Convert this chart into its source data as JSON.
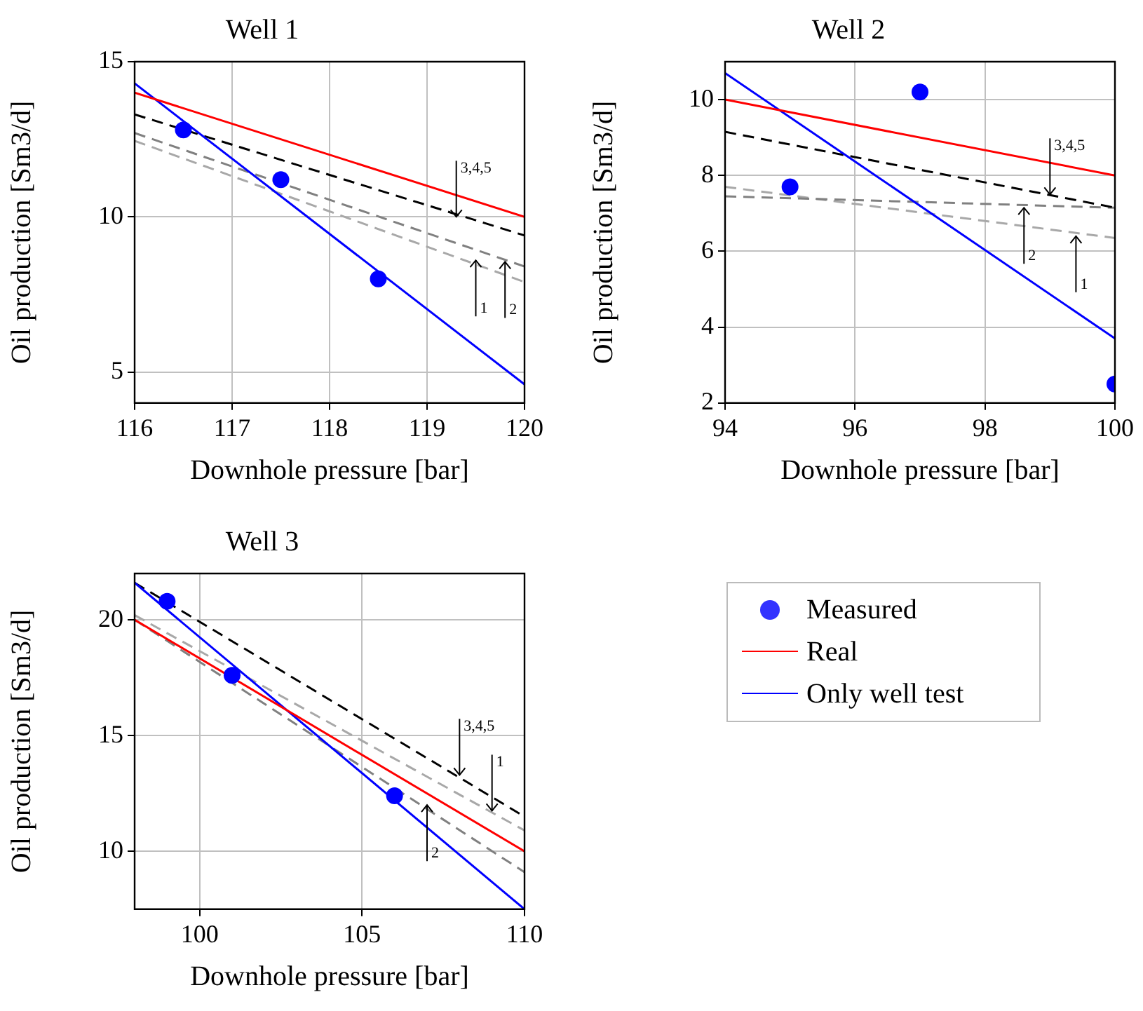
{
  "chart_data": [
    {
      "type": "line",
      "title": "Well 1",
      "xlabel": "Downhole pressure [bar]",
      "ylabel": "Oil production [Sm3/d]",
      "xlim": [
        116,
        120
      ],
      "xticks": [
        116,
        117,
        118,
        119,
        120
      ],
      "ylim": [
        4,
        15
      ],
      "yticks": [
        5,
        10,
        15
      ],
      "grid": true,
      "series": [
        {
          "type": "scatter",
          "marker": "circle",
          "color": "#0000ff",
          "x": [
            116.5,
            117.5,
            118.5
          ],
          "values": [
            12.8,
            11.2,
            8.0
          ]
        },
        {
          "color": "#ff0000",
          "x": [
            116,
            120
          ],
          "values": [
            14,
            10
          ]
        },
        {
          "color": "#0000ff",
          "x": [
            116,
            120
          ],
          "values": [
            14.3,
            4.6
          ]
        },
        {
          "color": "#000000",
          "line_style": "dashed",
          "x": [
            116,
            120
          ],
          "values": [
            13.3,
            9.4
          ]
        },
        {
          "color": "#808080",
          "line_style": "dashed",
          "x": [
            116,
            120
          ],
          "values": [
            12.7,
            8.4
          ]
        },
        {
          "color": "#a8a8a8",
          "line_style": "dashed",
          "x": [
            116,
            120
          ],
          "values": [
            12.45,
            7.9
          ]
        }
      ],
      "annotations": [
        {
          "text": "3,4,5",
          "x": 119.3,
          "y": 10.0
        },
        {
          "text": "1",
          "x": 119.5,
          "y": 8.6
        },
        {
          "text": "2",
          "x": 119.8,
          "y": 8.55
        }
      ]
    },
    {
      "type": "line",
      "title": "Well 2",
      "xlabel": "Downhole pressure [bar]",
      "ylabel": "Oil production [Sm3/d]",
      "xlim": [
        94,
        100
      ],
      "xticks": [
        94,
        96,
        98,
        100
      ],
      "ylim": [
        2,
        11
      ],
      "yticks": [
        2,
        4,
        6,
        8,
        10
      ],
      "grid": true,
      "series": [
        {
          "type": "scatter",
          "marker": "circle",
          "color": "#0000ff",
          "x": [
            95,
            97,
            100
          ],
          "values": [
            7.7,
            10.2,
            2.5
          ]
        },
        {
          "color": "#ff0000",
          "x": [
            94,
            100
          ],
          "values": [
            10,
            8
          ]
        },
        {
          "color": "#0000ff",
          "x": [
            94,
            100
          ],
          "values": [
            10.7,
            3.7
          ]
        },
        {
          "color": "#000000",
          "line_style": "dashed",
          "x": [
            94,
            100
          ],
          "values": [
            9.15,
            7.15
          ]
        },
        {
          "color": "#808080",
          "line_style": "dashed",
          "x": [
            94,
            100
          ],
          "values": [
            7.45,
            7.15
          ]
        },
        {
          "color": "#a8a8a8",
          "line_style": "dashed",
          "x": [
            94,
            100
          ],
          "values": [
            7.7,
            6.35
          ]
        }
      ],
      "annotations": [
        {
          "text": "3,4,5",
          "x": 99.0,
          "y": 7.5
        },
        {
          "text": "2",
          "x": 98.6,
          "y": 7.15
        },
        {
          "text": "1",
          "x": 99.4,
          "y": 6.4
        }
      ]
    },
    {
      "type": "line",
      "title": "Well 3",
      "xlabel": "Downhole pressure [bar]",
      "ylabel": "Oil production [Sm3/d]",
      "xlim": [
        98,
        110
      ],
      "xticks": [
        100,
        105,
        110
      ],
      "ylim": [
        7.5,
        22
      ],
      "yticks": [
        10,
        15,
        20
      ],
      "grid": true,
      "legend": "right",
      "series": [
        {
          "name": "Measured",
          "type": "scatter",
          "marker": "circle",
          "color": "#0000ff",
          "x": [
            99,
            101,
            106
          ],
          "values": [
            20.8,
            17.6,
            12.4
          ]
        },
        {
          "name": "Real",
          "color": "#ff0000",
          "x": [
            98,
            110
          ],
          "values": [
            20,
            10
          ]
        },
        {
          "name": "Only well test",
          "color": "#0000ff",
          "x": [
            98,
            110
          ],
          "values": [
            21.6,
            7.5
          ]
        },
        {
          "color": "#000000",
          "line_style": "dashed",
          "x": [
            98,
            110
          ],
          "values": [
            21.6,
            11.5
          ]
        },
        {
          "color": "#a8a8a8",
          "line_style": "dashed",
          "x": [
            98,
            110
          ],
          "values": [
            20.2,
            10.9
          ]
        },
        {
          "color": "#808080",
          "line_style": "dashed",
          "x": [
            98,
            110
          ],
          "values": [
            20.0,
            9.1
          ]
        }
      ],
      "annotations": [
        {
          "text": "3,4,5",
          "x": 108.0,
          "y": 13.3
        },
        {
          "text": "1",
          "x": 109.0,
          "y": 11.75
        },
        {
          "text": "2",
          "x": 107.0,
          "y": 12.0
        }
      ]
    }
  ]
}
